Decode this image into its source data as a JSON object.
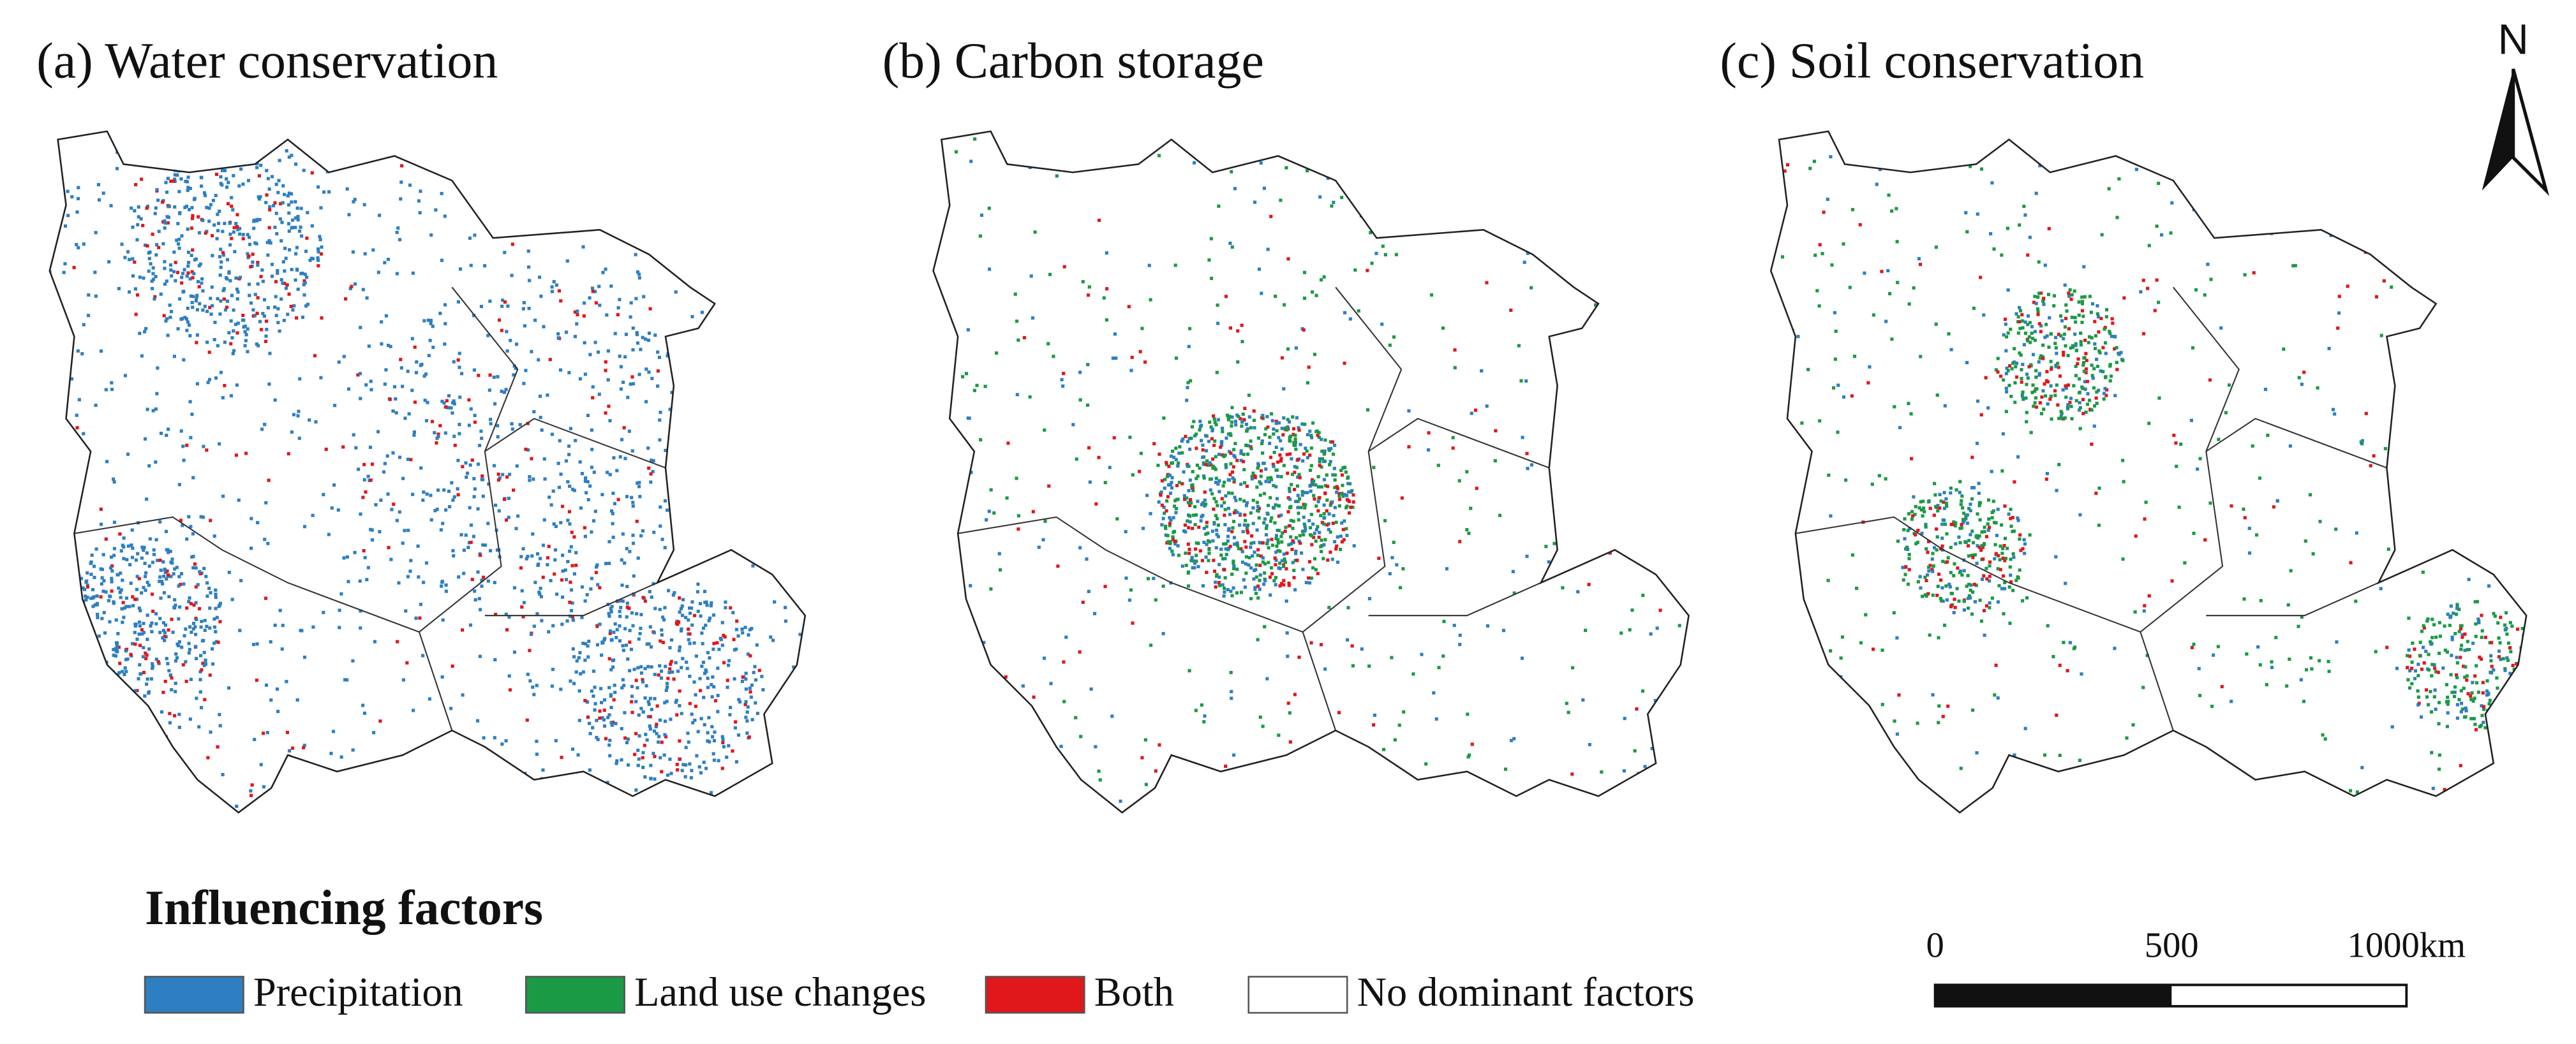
{
  "panels": [
    {
      "title": "(a) Water conservation"
    },
    {
      "title": "(b) Carbon storage"
    },
    {
      "title": "(c) Soil conservation"
    }
  ],
  "north_arrow": {
    "label": "N"
  },
  "legend": {
    "title": "Influencing factors",
    "items": [
      {
        "label": "Precipitation",
        "color": "#2e7fc1"
      },
      {
        "label": "Land use changes",
        "color": "#1a9a45"
      },
      {
        "label": "Both",
        "color": "#e0171b"
      },
      {
        "label": "No dominant factors",
        "color": "#ffffff"
      }
    ]
  },
  "scale_bar": {
    "labels": [
      "0",
      "500",
      "1000km"
    ]
  }
}
